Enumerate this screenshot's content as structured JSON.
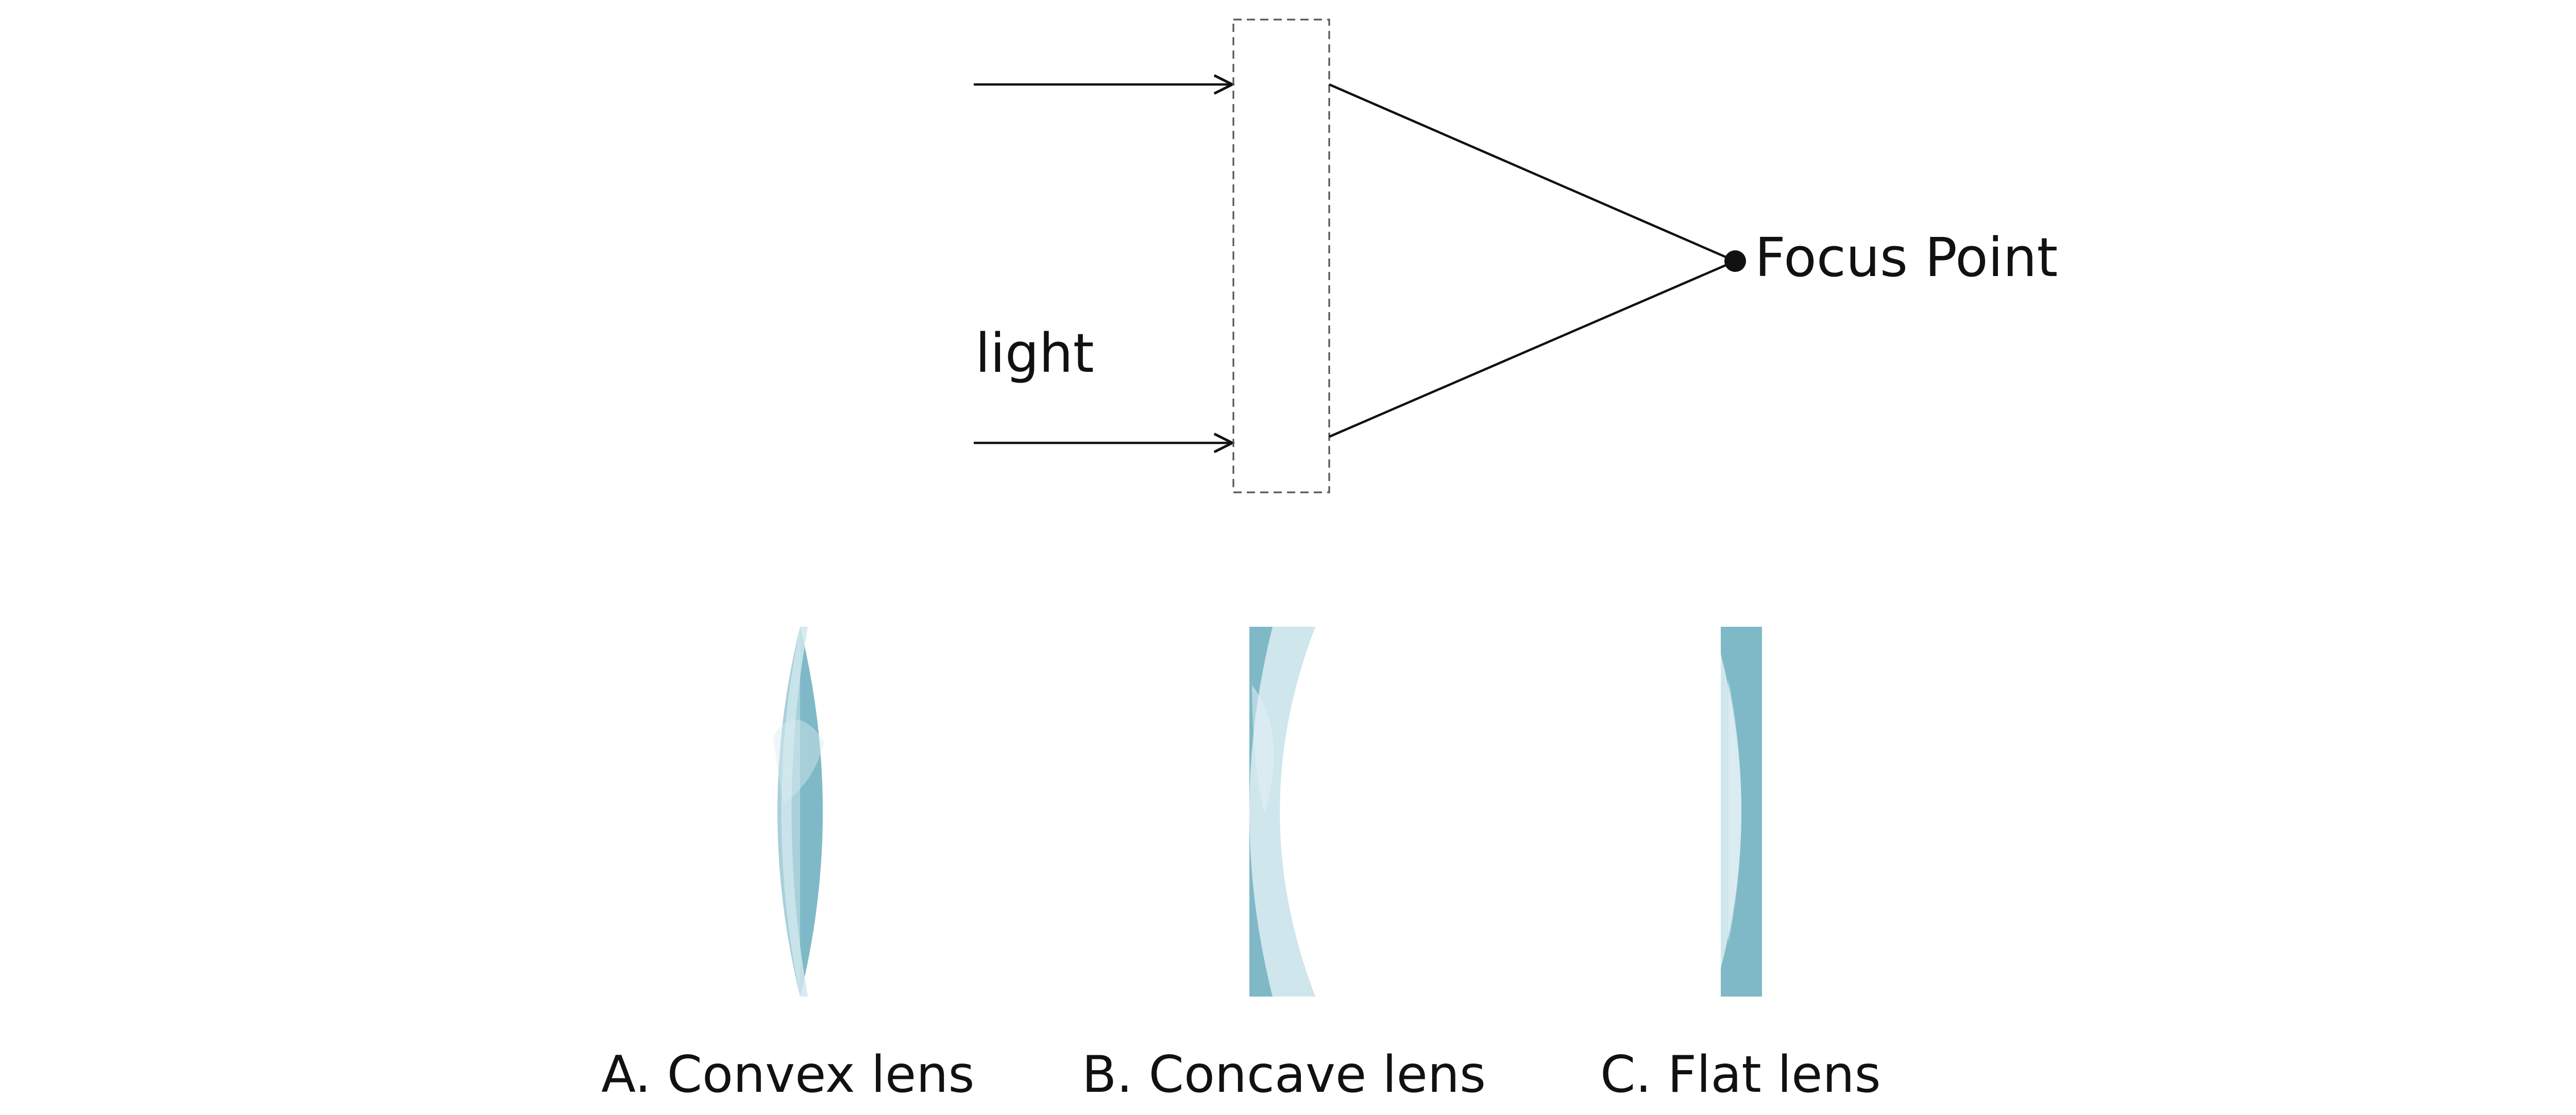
{
  "diagram": {
    "light_label": "light",
    "focus_label": "Focus Point",
    "options": [
      {
        "letter": "A",
        "label": "A. Convex lens",
        "kind": "convex"
      },
      {
        "letter": "B",
        "label": "B. Concave lens",
        "kind": "concave"
      },
      {
        "letter": "C",
        "label": "C. Flat lens",
        "kind": "flat"
      }
    ]
  },
  "colors": {
    "lens_dark": "#7fb9c7",
    "lens_light": "#cfe6ec",
    "lens_mid": "#a9d0db",
    "line": "#111111"
  }
}
